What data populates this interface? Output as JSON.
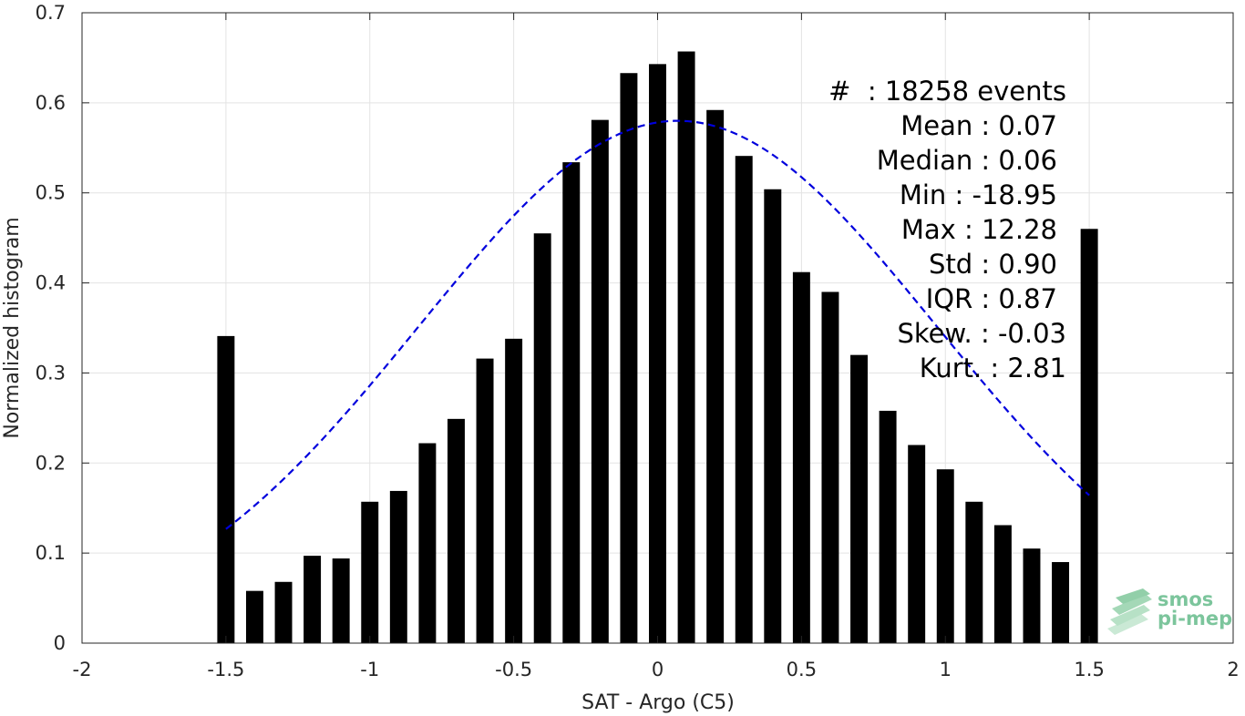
{
  "chart_data": {
    "type": "bar",
    "xlabel": "SAT - Argo (C5)",
    "ylabel": "Normalized histogram",
    "xlim": [
      -2,
      2
    ],
    "ylim": [
      0,
      0.7
    ],
    "grid": true,
    "x_ticks": [
      -2,
      -1.5,
      -1,
      -0.5,
      0,
      0.5,
      1,
      1.5,
      2
    ],
    "x_tick_labels": [
      "-2",
      "-1.5",
      "-1",
      "-0.5",
      "0",
      "0.5",
      "1",
      "1.5",
      "2"
    ],
    "y_ticks": [
      0,
      0.1,
      0.2,
      0.3,
      0.4,
      0.5,
      0.6,
      0.7
    ],
    "y_tick_labels": [
      "0",
      "0.1",
      "0.2",
      "0.3",
      "0.4",
      "0.5",
      "0.6",
      "0.7"
    ],
    "bar_color": "#000000",
    "bars": {
      "x": [
        -1.5,
        -1.4,
        -1.3,
        -1.2,
        -1.1,
        -1.0,
        -0.9,
        -0.8,
        -0.7,
        -0.6,
        -0.5,
        -0.4,
        -0.3,
        -0.2,
        -0.1,
        0.0,
        0.1,
        0.2,
        0.3,
        0.4,
        0.5,
        0.6,
        0.7,
        0.8,
        0.9,
        1.0,
        1.1,
        1.2,
        1.3,
        1.4,
        1.5
      ],
      "values": [
        0.341,
        0.058,
        0.068,
        0.097,
        0.094,
        0.157,
        0.169,
        0.222,
        0.249,
        0.316,
        0.338,
        0.455,
        0.534,
        0.581,
        0.633,
        0.643,
        0.657,
        0.592,
        0.541,
        0.504,
        0.412,
        0.39,
        0.32,
        0.258,
        0.22,
        0.193,
        0.157,
        0.131,
        0.105,
        0.09,
        0.46
      ],
      "width": 0.06
    },
    "fit_curve": {
      "style": "dashed",
      "color": "#0000dd",
      "mean": 0.07,
      "std": 0.9,
      "peak": 0.58,
      "x_range": [
        -1.5,
        1.5
      ]
    },
    "stats": {
      "events": "#  : 18258 events",
      "mean": "Mean : 0.07",
      "median": "Median : 0.06",
      "min": "Min : -18.95",
      "max": "Max : 12.28",
      "std": "Std : 0.90",
      "iqr": "IQR : 0.87",
      "skew": "Skew. : -0.03",
      "kurt": "Kurt. : 2.81"
    }
  },
  "logo": {
    "line1": "smos",
    "line2": "pi-mep",
    "color": "#7cc59c"
  }
}
